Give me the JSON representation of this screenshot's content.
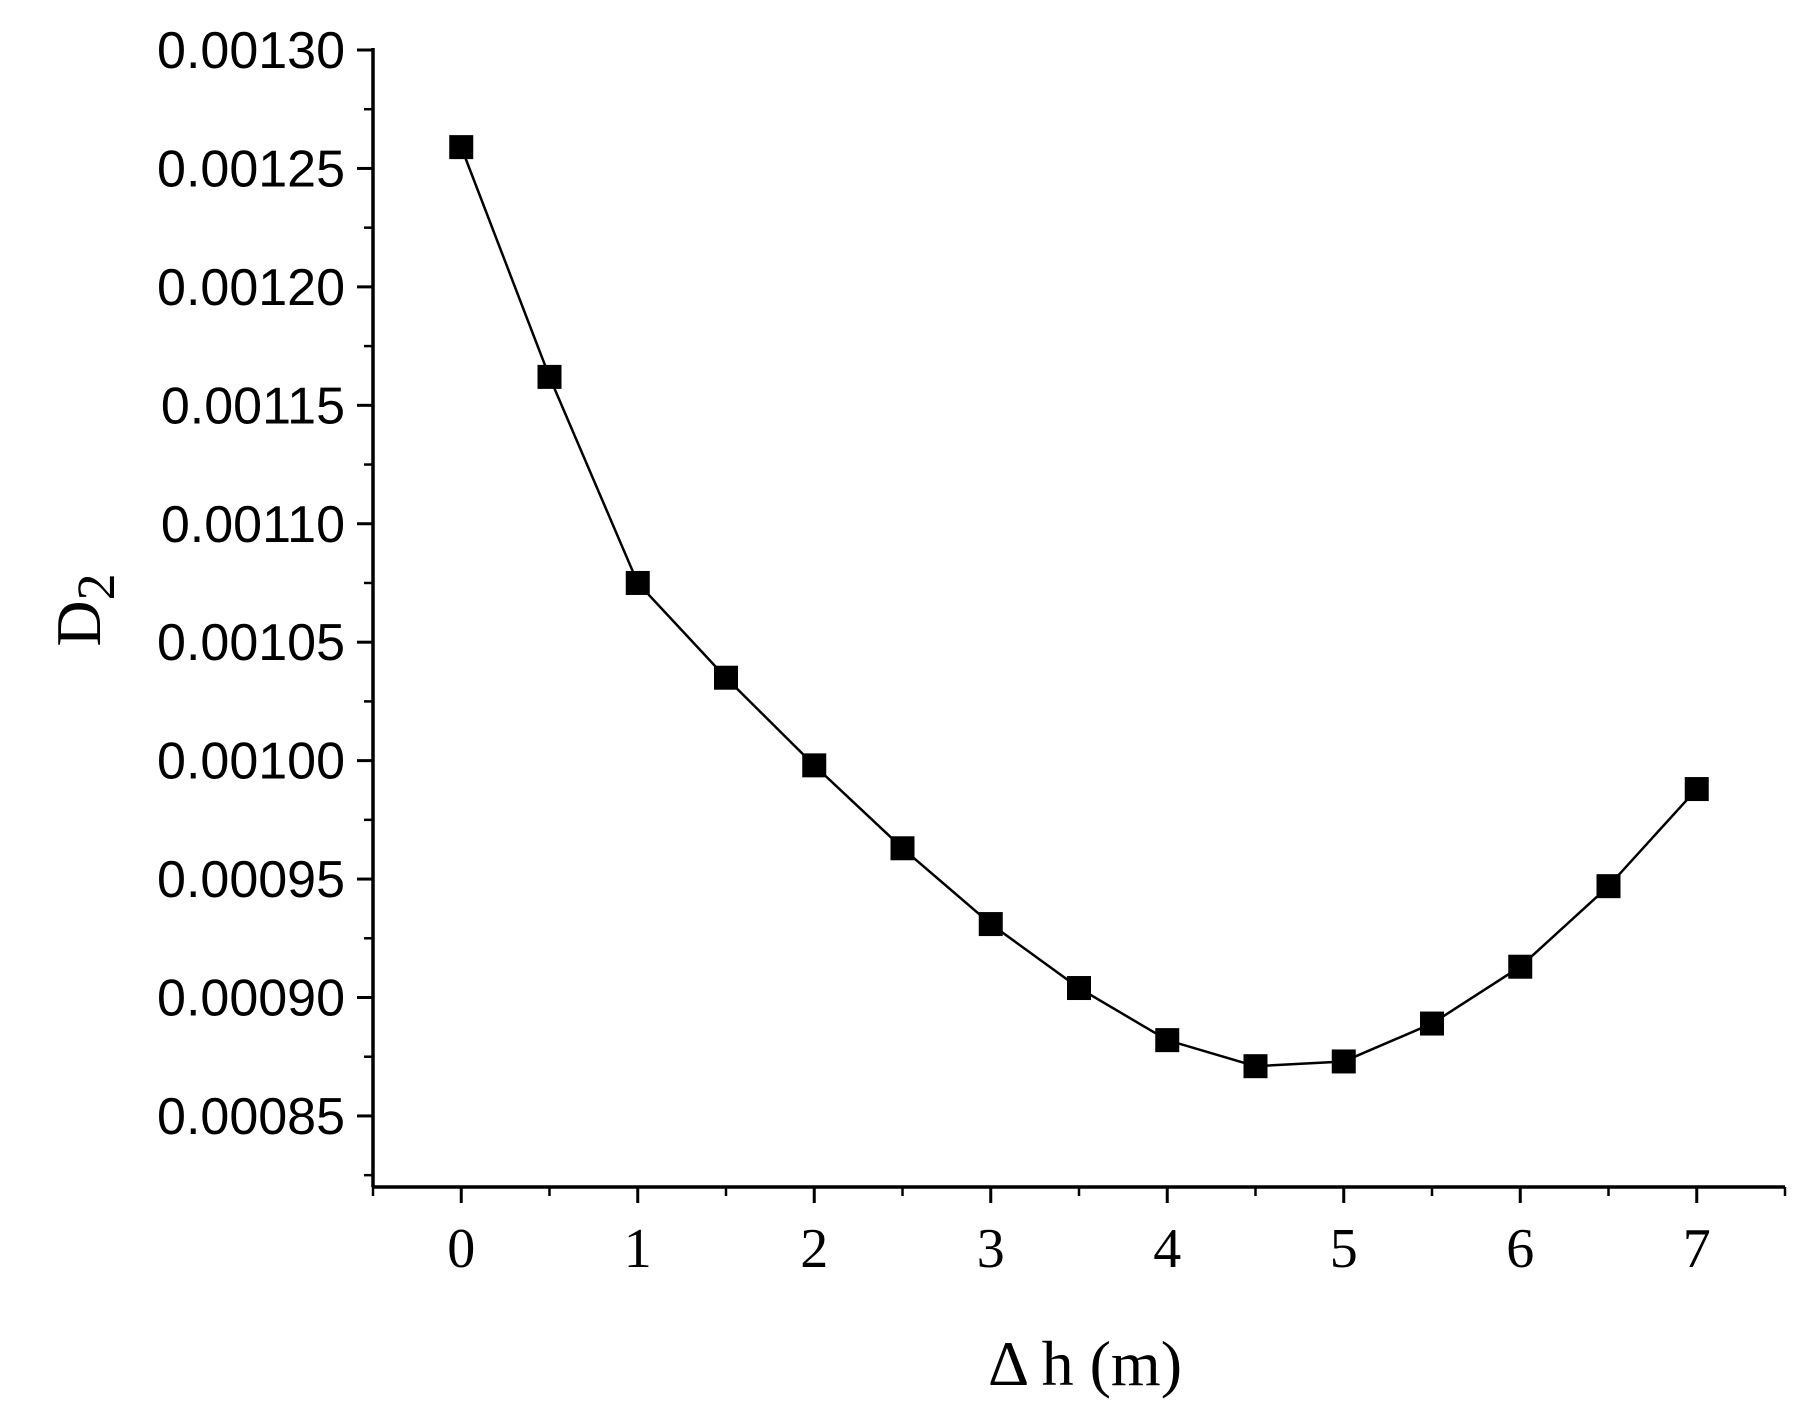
{
  "chart_data": {
    "type": "line",
    "title": "",
    "xlabel": "Δ h  (m)",
    "ylabel_main": "D",
    "ylabel_sub": "2",
    "xlim": [
      -0.5,
      7.5
    ],
    "ylim": [
      0.00082,
      0.0013
    ],
    "x_ticks": [
      0,
      1,
      2,
      3,
      4,
      5,
      6,
      7
    ],
    "x_tick_labels": [
      "0",
      "1",
      "2",
      "3",
      "4",
      "5",
      "6",
      "7"
    ],
    "y_ticks": [
      0.00085,
      0.0009,
      0.00095,
      0.001,
      0.00105,
      0.0011,
      0.00115,
      0.0012,
      0.00125,
      0.0013
    ],
    "y_tick_labels": [
      "0.00085",
      "0.00090",
      "0.00095",
      "0.00100",
      "0.00105",
      "0.00110",
      "0.00115",
      "0.00120",
      "0.00125",
      "0.00130"
    ],
    "grid": false,
    "legend": "none",
    "series": [
      {
        "marker": "square",
        "color": "#000000",
        "x": [
          0,
          0.5,
          1,
          1.5,
          2,
          2.5,
          3,
          3.5,
          4,
          4.5,
          5,
          5.5,
          6,
          6.5,
          7
        ],
        "values": [
          0.001259,
          0.001162,
          0.001075,
          0.001035,
          0.000998,
          0.000963,
          0.000931,
          0.000904,
          0.000882,
          0.000871,
          0.000873,
          0.000889,
          0.000913,
          0.000947,
          0.000988
        ]
      }
    ]
  }
}
